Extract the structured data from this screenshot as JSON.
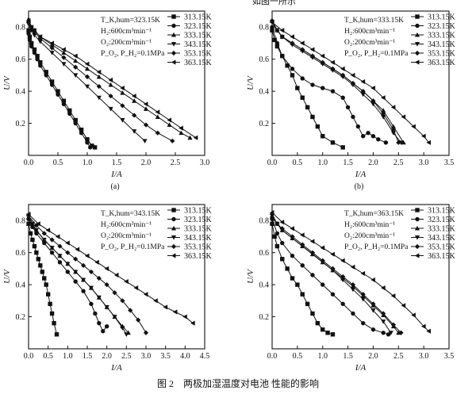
{
  "header_fragment": "如图一所示",
  "figure_caption": "图 2　两极加湿温度对电池 性能的影响",
  "chart_data": [
    {
      "type": "line",
      "panel_label": "(a)",
      "xlabel": "I/A",
      "ylabel": "U/V",
      "xlim": [
        0,
        3.0
      ],
      "ylim": [
        0,
        0.9
      ],
      "xticks": [
        "0.0",
        "0.5",
        "1.0",
        "1.5",
        "2.0",
        "2.5",
        "3.0"
      ],
      "yticks": [
        "0.2",
        "0.4",
        "0.6",
        "0.8"
      ],
      "conditions": [
        "T_K,hum=323.15K",
        "H₂:600cm³min⁻¹",
        "O₂:200cm³min⁻¹",
        "P_O₂, P_H₂=0.1MPa"
      ],
      "series": [
        {
          "name": "313.15K",
          "marker": "square",
          "x": [
            0,
            0.02,
            0.05,
            0.1,
            0.15,
            0.2,
            0.3,
            0.4,
            0.5,
            0.6,
            0.7,
            0.8,
            0.9,
            1.0,
            1.08,
            1.13
          ],
          "y": [
            0.78,
            0.74,
            0.7,
            0.66,
            0.62,
            0.58,
            0.52,
            0.46,
            0.4,
            0.34,
            0.28,
            0.22,
            0.16,
            0.1,
            0.06,
            0.05
          ]
        },
        {
          "name": "323.15K",
          "marker": "circle",
          "x": [
            0,
            0.02,
            0.05,
            0.1,
            0.15,
            0.2,
            0.3,
            0.4,
            0.5,
            0.6,
            0.7,
            0.8,
            0.9,
            1.0,
            1.05
          ],
          "y": [
            0.76,
            0.72,
            0.68,
            0.64,
            0.6,
            0.56,
            0.5,
            0.44,
            0.38,
            0.32,
            0.26,
            0.2,
            0.14,
            0.08,
            0.05
          ]
        },
        {
          "name": "333.15K",
          "marker": "triangle-up",
          "x": [
            0,
            0.05,
            0.1,
            0.2,
            0.4,
            0.6,
            0.8,
            1.0,
            1.2,
            1.4,
            1.6,
            1.8,
            2.0,
            2.2,
            2.4,
            2.6,
            2.75
          ],
          "y": [
            0.85,
            0.8,
            0.78,
            0.74,
            0.69,
            0.64,
            0.59,
            0.54,
            0.49,
            0.44,
            0.39,
            0.34,
            0.29,
            0.24,
            0.19,
            0.14,
            0.11
          ]
        },
        {
          "name": "343.15K",
          "marker": "triangle-down",
          "x": [
            0,
            0.05,
            0.1,
            0.2,
            0.4,
            0.6,
            0.8,
            1.0,
            1.2,
            1.4,
            1.6,
            1.8,
            1.98
          ],
          "y": [
            0.82,
            0.78,
            0.75,
            0.71,
            0.64,
            0.57,
            0.5,
            0.43,
            0.36,
            0.29,
            0.22,
            0.15,
            0.09
          ]
        },
        {
          "name": "353.15K",
          "marker": "diamond",
          "x": [
            0,
            0.05,
            0.1,
            0.2,
            0.4,
            0.6,
            0.8,
            1.0,
            1.2,
            1.4,
            1.6,
            1.8,
            2.0,
            2.2,
            2.45
          ],
          "y": [
            0.83,
            0.79,
            0.77,
            0.73,
            0.67,
            0.61,
            0.55,
            0.49,
            0.43,
            0.37,
            0.31,
            0.25,
            0.19,
            0.14,
            0.09
          ]
        },
        {
          "name": "363.15K",
          "marker": "triangle-left",
          "x": [
            0,
            0.05,
            0.1,
            0.2,
            0.4,
            0.6,
            0.8,
            1.0,
            1.2,
            1.4,
            1.6,
            1.8,
            2.0,
            2.2,
            2.4,
            2.6,
            2.85
          ],
          "y": [
            0.84,
            0.8,
            0.78,
            0.74,
            0.7,
            0.66,
            0.62,
            0.57,
            0.52,
            0.47,
            0.42,
            0.37,
            0.32,
            0.27,
            0.22,
            0.17,
            0.11
          ]
        }
      ]
    },
    {
      "type": "line",
      "panel_label": "(b)",
      "xlabel": "I/A",
      "ylabel": "U/V",
      "xlim": [
        0,
        3.5
      ],
      "ylim": [
        0,
        0.9
      ],
      "xticks": [
        "0.0",
        "0.5",
        "1.0",
        "1.5",
        "2.0",
        "2.5",
        "3.0",
        "3.5"
      ],
      "yticks": [
        "0.2",
        "0.4",
        "0.6",
        "0.8"
      ],
      "conditions": [
        "T_K,hum=333.15K",
        "H₂:600cm³min⁻¹",
        "O₂:200cm³min⁻¹",
        "P_O₂, P_H₂=0.1MPa"
      ],
      "series": [
        {
          "name": "313.15K",
          "marker": "square",
          "x": [
            0,
            0.05,
            0.1,
            0.2,
            0.3,
            0.4,
            0.5,
            0.6,
            0.7,
            0.8,
            0.9,
            1.0,
            1.2,
            1.4
          ],
          "y": [
            0.78,
            0.72,
            0.68,
            0.62,
            0.56,
            0.5,
            0.42,
            0.36,
            0.3,
            0.24,
            0.18,
            0.12,
            0.08,
            0.05
          ]
        },
        {
          "name": "323.15K",
          "marker": "circle",
          "x": [
            0,
            0.1,
            0.2,
            0.4,
            0.6,
            0.8,
            1.0,
            1.2,
            1.4,
            1.5,
            1.6,
            1.7,
            1.8,
            1.9,
            2.0,
            2.1,
            2.25
          ],
          "y": [
            0.8,
            0.7,
            0.62,
            0.54,
            0.48,
            0.44,
            0.42,
            0.4,
            0.36,
            0.3,
            0.24,
            0.18,
            0.12,
            0.14,
            0.12,
            0.1,
            0.08
          ]
        },
        {
          "name": "333.15K",
          "marker": "triangle-up",
          "x": [
            0,
            0.1,
            0.2,
            0.4,
            0.6,
            0.8,
            1.0,
            1.2,
            1.4,
            1.6,
            1.8,
            2.0,
            2.2,
            2.4,
            2.6
          ],
          "y": [
            0.84,
            0.78,
            0.74,
            0.7,
            0.66,
            0.62,
            0.58,
            0.54,
            0.5,
            0.45,
            0.4,
            0.34,
            0.28,
            0.18,
            0.08
          ]
        },
        {
          "name": "343.15K",
          "marker": "triangle-down",
          "x": [
            0,
            0.1,
            0.2,
            0.4,
            0.6,
            0.8,
            1.0,
            1.2,
            1.4,
            1.6,
            1.8,
            2.0,
            2.2,
            2.4,
            2.55
          ],
          "y": [
            0.83,
            0.78,
            0.74,
            0.69,
            0.65,
            0.61,
            0.57,
            0.53,
            0.49,
            0.44,
            0.38,
            0.32,
            0.24,
            0.14,
            0.08
          ]
        },
        {
          "name": "353.15K",
          "marker": "diamond",
          "x": [
            0,
            0.1,
            0.2,
            0.4,
            0.6,
            0.8,
            1.0,
            1.2,
            1.4,
            1.6,
            1.8,
            2.0,
            2.2,
            2.4,
            2.5
          ],
          "y": [
            0.84,
            0.78,
            0.74,
            0.7,
            0.66,
            0.62,
            0.58,
            0.54,
            0.5,
            0.45,
            0.4,
            0.34,
            0.26,
            0.16,
            0.08
          ]
        },
        {
          "name": "363.15K",
          "marker": "triangle-left",
          "x": [
            0,
            0.2,
            0.4,
            0.6,
            0.8,
            1.0,
            1.2,
            1.4,
            1.6,
            1.8,
            2.0,
            2.2,
            2.4,
            2.6,
            2.8,
            3.0,
            3.1
          ],
          "y": [
            0.83,
            0.78,
            0.74,
            0.7,
            0.66,
            0.62,
            0.58,
            0.54,
            0.5,
            0.46,
            0.42,
            0.36,
            0.3,
            0.24,
            0.18,
            0.12,
            0.08
          ]
        }
      ]
    },
    {
      "type": "line",
      "panel_label": "",
      "xlabel": "I/A",
      "ylabel": "U/V",
      "xlim": [
        0,
        4.5
      ],
      "ylim": [
        0,
        0.9
      ],
      "xticks": [
        "0.0",
        "0.5",
        "1.0",
        "1.5",
        "2.0",
        "2.5",
        "3.0",
        "3.5",
        "4.0",
        "4.5"
      ],
      "yticks": [
        "0.2",
        "0.4",
        "0.6",
        "0.8"
      ],
      "conditions": [
        "T_K,hum=343.15K",
        "H₂:600cm³min⁻¹",
        "O₂:200cm³min⁻¹",
        "P_O₂, P_H₂=0.1MPa"
      ],
      "series": [
        {
          "name": "313.15K",
          "marker": "square",
          "x": [
            0,
            0.05,
            0.1,
            0.15,
            0.2,
            0.25,
            0.3,
            0.35,
            0.4,
            0.45,
            0.5,
            0.55,
            0.6,
            0.65,
            0.72
          ],
          "y": [
            0.78,
            0.72,
            0.68,
            0.64,
            0.6,
            0.56,
            0.52,
            0.48,
            0.44,
            0.4,
            0.34,
            0.28,
            0.22,
            0.16,
            0.09
          ]
        },
        {
          "name": "323.15K",
          "marker": "circle",
          "x": [
            0,
            0.1,
            0.2,
            0.4,
            0.6,
            0.8,
            1.0,
            1.2,
            1.4,
            1.6,
            1.7,
            1.8,
            1.9,
            2.0
          ],
          "y": [
            0.81,
            0.76,
            0.72,
            0.66,
            0.6,
            0.54,
            0.48,
            0.42,
            0.36,
            0.28,
            0.22,
            0.16,
            0.11,
            0.14
          ]
        },
        {
          "name": "333.15K",
          "marker": "triangle-up",
          "x": [
            0,
            0.1,
            0.2,
            0.4,
            0.6,
            0.8,
            1.0,
            1.2,
            1.4,
            1.6,
            1.8,
            2.0,
            2.2,
            2.4,
            2.55
          ],
          "y": [
            0.82,
            0.78,
            0.74,
            0.68,
            0.63,
            0.58,
            0.53,
            0.48,
            0.43,
            0.38,
            0.32,
            0.26,
            0.2,
            0.14,
            0.1
          ]
        },
        {
          "name": "343.15K",
          "marker": "triangle-down",
          "x": [
            0,
            0.1,
            0.2,
            0.4,
            0.6,
            0.8,
            1.0,
            1.2,
            1.4,
            1.6,
            1.8,
            2.0,
            2.2,
            2.4,
            2.5
          ],
          "y": [
            0.83,
            0.78,
            0.74,
            0.68,
            0.63,
            0.58,
            0.53,
            0.48,
            0.43,
            0.38,
            0.32,
            0.26,
            0.2,
            0.13,
            0.09
          ]
        },
        {
          "name": "353.15K",
          "marker": "diamond",
          "x": [
            0,
            0.2,
            0.4,
            0.6,
            0.8,
            1.0,
            1.2,
            1.4,
            1.6,
            1.8,
            2.0,
            2.2,
            2.4,
            2.6,
            2.8,
            3.0
          ],
          "y": [
            0.83,
            0.77,
            0.72,
            0.68,
            0.64,
            0.6,
            0.56,
            0.52,
            0.48,
            0.44,
            0.4,
            0.35,
            0.3,
            0.24,
            0.18,
            0.1
          ]
        },
        {
          "name": "363.15K",
          "marker": "triangle-left",
          "x": [
            0,
            0.25,
            0.5,
            0.75,
            1.0,
            1.25,
            1.5,
            1.75,
            2.0,
            2.25,
            2.5,
            2.75,
            3.0,
            3.25,
            3.5,
            3.75,
            4.0,
            4.2
          ],
          "y": [
            0.84,
            0.78,
            0.74,
            0.7,
            0.66,
            0.62,
            0.58,
            0.54,
            0.5,
            0.46,
            0.42,
            0.38,
            0.34,
            0.3,
            0.26,
            0.23,
            0.2,
            0.16
          ]
        }
      ]
    },
    {
      "type": "line",
      "panel_label": "",
      "xlabel": "I/A",
      "ylabel": "U/V",
      "xlim": [
        0,
        3.5
      ],
      "ylim": [
        0,
        0.9
      ],
      "xticks": [
        "0.0",
        "0.5",
        "1.0",
        "1.5",
        "2.0",
        "2.5",
        "3.0",
        "3.5"
      ],
      "yticks": [
        "0.2",
        "0.4",
        "0.6",
        "0.8"
      ],
      "conditions": [
        "T_K,hum=363.15K",
        "H₂:600cm³min⁻¹",
        "O₂:200cm³min⁻¹",
        "P_O₂, P_H₂=0.1MPa"
      ],
      "series": [
        {
          "name": "313.15K",
          "marker": "square",
          "x": [
            0,
            0.05,
            0.1,
            0.2,
            0.3,
            0.4,
            0.5,
            0.6,
            0.7,
            0.8,
            0.9,
            1.0,
            1.1,
            1.2
          ],
          "y": [
            0.78,
            0.7,
            0.64,
            0.56,
            0.5,
            0.44,
            0.4,
            0.34,
            0.28,
            0.22,
            0.16,
            0.12,
            0.1,
            0.09
          ]
        },
        {
          "name": "323.15K",
          "marker": "circle",
          "x": [
            0,
            0.1,
            0.2,
            0.4,
            0.6,
            0.8,
            1.0,
            1.2,
            1.4,
            1.6,
            1.8,
            2.0,
            2.2,
            2.3
          ],
          "y": [
            0.81,
            0.72,
            0.66,
            0.58,
            0.52,
            0.46,
            0.4,
            0.34,
            0.28,
            0.22,
            0.16,
            0.12,
            0.1,
            0.09
          ]
        },
        {
          "name": "333.15K",
          "marker": "triangle-up",
          "x": [
            0,
            0.1,
            0.2,
            0.4,
            0.6,
            0.8,
            1.0,
            1.2,
            1.4,
            1.6,
            1.8,
            2.0,
            2.2,
            2.4,
            2.5
          ],
          "y": [
            0.83,
            0.78,
            0.74,
            0.69,
            0.64,
            0.59,
            0.54,
            0.49,
            0.44,
            0.39,
            0.33,
            0.27,
            0.21,
            0.14,
            0.1
          ]
        },
        {
          "name": "343.15K",
          "marker": "triangle-down",
          "x": [
            0,
            0.1,
            0.2,
            0.4,
            0.6,
            0.8,
            1.0,
            1.2,
            1.4,
            1.6,
            1.8,
            2.0,
            2.2,
            2.35
          ],
          "y": [
            0.83,
            0.78,
            0.74,
            0.69,
            0.64,
            0.59,
            0.54,
            0.49,
            0.43,
            0.37,
            0.31,
            0.24,
            0.17,
            0.1
          ]
        },
        {
          "name": "353.15K",
          "marker": "diamond",
          "x": [
            0,
            0.1,
            0.2,
            0.4,
            0.6,
            0.8,
            1.0,
            1.2,
            1.4,
            1.6,
            1.8,
            2.0,
            2.2,
            2.4,
            2.55
          ],
          "y": [
            0.84,
            0.78,
            0.75,
            0.7,
            0.65,
            0.6,
            0.55,
            0.5,
            0.45,
            0.4,
            0.34,
            0.28,
            0.22,
            0.15,
            0.1
          ]
        },
        {
          "name": "363.15K",
          "marker": "triangle-left",
          "x": [
            0,
            0.2,
            0.4,
            0.6,
            0.8,
            1.0,
            1.2,
            1.4,
            1.6,
            1.8,
            2.0,
            2.2,
            2.4,
            2.6,
            2.8,
            3.0,
            3.1
          ],
          "y": [
            0.85,
            0.79,
            0.75,
            0.71,
            0.67,
            0.63,
            0.59,
            0.55,
            0.51,
            0.47,
            0.43,
            0.38,
            0.33,
            0.27,
            0.21,
            0.14,
            0.11
          ]
        }
      ]
    }
  ]
}
